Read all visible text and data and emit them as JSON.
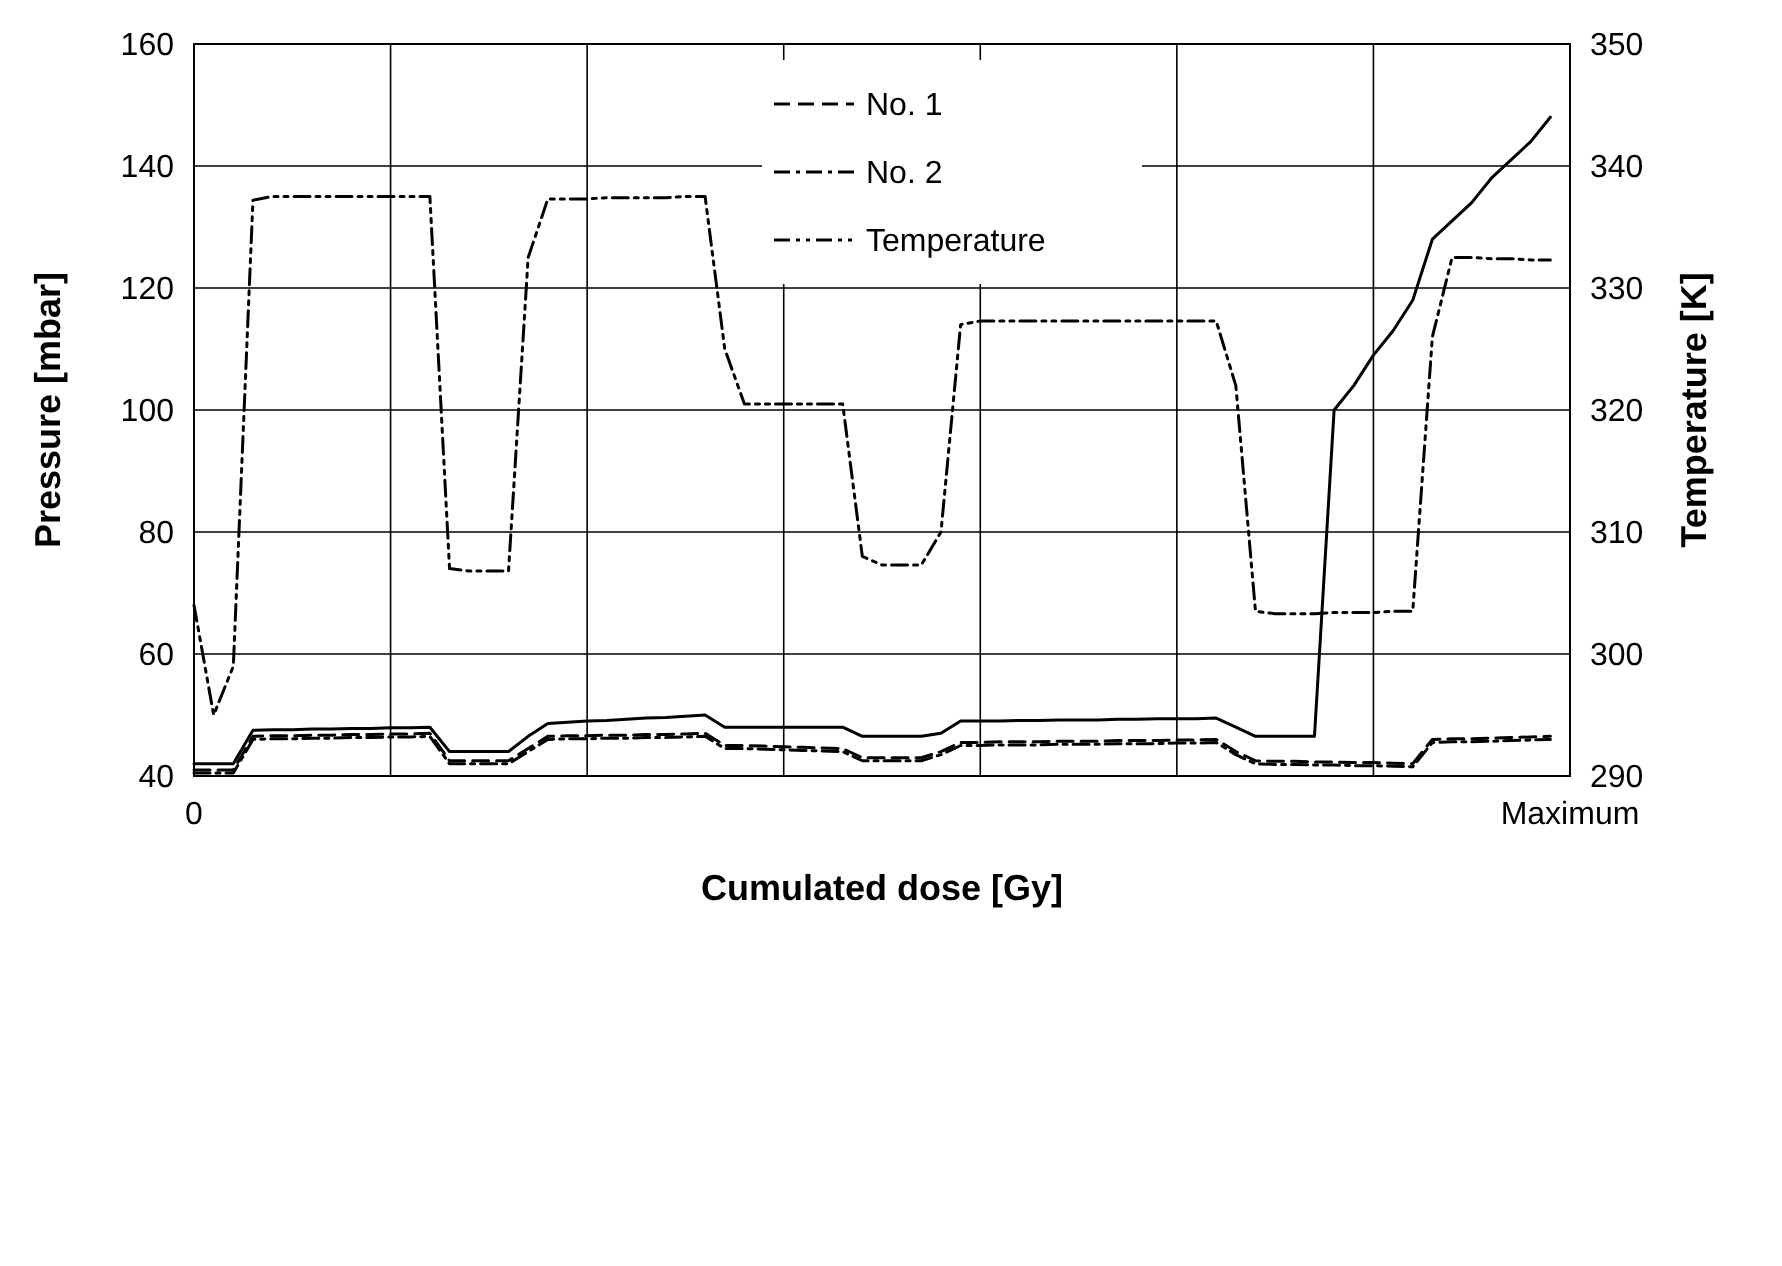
{
  "chart_data": {
    "type": "line",
    "xlabel": "Cumulated dose [Gy]",
    "ylabel": "Pressure [mbar]",
    "y2label": "Temperature [K]",
    "categories": [
      "0",
      null,
      null,
      null,
      null,
      null,
      null,
      null,
      null,
      null,
      null,
      null,
      null,
      null,
      null,
      null,
      null,
      null,
      null,
      null,
      null,
      null,
      null,
      null,
      null,
      null,
      null,
      null,
      null,
      null,
      null,
      null,
      null,
      null,
      null,
      null,
      null,
      null,
      null,
      null,
      null,
      null,
      null,
      null,
      null,
      null,
      null,
      null,
      null,
      null,
      null,
      null,
      null,
      null,
      null,
      null,
      null,
      null,
      null,
      null,
      null,
      null,
      null,
      null,
      null,
      null,
      null,
      null,
      null,
      null,
      "Maximum"
    ],
    "ylim": [
      40,
      160
    ],
    "yticks": [
      40,
      60,
      80,
      100,
      120,
      140,
      160
    ],
    "y2lim": [
      290,
      350
    ],
    "y2ticks": [
      290,
      300,
      310,
      320,
      330,
      340,
      350
    ],
    "grid": true,
    "legend": "top",
    "marker": "none",
    "series": [
      {
        "color": "#000000",
        "line_style": "solid",
        "values": [
          42,
          42,
          42,
          47.5,
          47.6,
          47.6,
          47.7,
          47.7,
          47.8,
          47.8,
          47.9,
          47.9,
          48,
          44,
          44,
          44,
          44,
          46.5,
          48.6,
          48.8,
          49,
          49.1,
          49.3,
          49.5,
          49.6,
          49.8,
          50,
          48,
          48,
          48,
          48,
          48,
          48,
          48,
          46.5,
          46.5,
          46.5,
          46.5,
          47,
          49,
          49,
          49,
          49.1,
          49.1,
          49.2,
          49.2,
          49.2,
          49.3,
          49.3,
          49.4,
          49.4,
          49.4,
          49.5,
          48,
          46.5,
          46.5,
          46.5,
          46.5,
          100,
          104,
          109,
          113,
          118,
          128,
          131,
          134,
          138,
          141,
          144,
          148,
          null
        ]
      },
      {
        "name": "No. 1",
        "color": "#000000",
        "line_style": "dashed",
        "values": [
          41,
          41,
          41,
          46.5,
          46.6,
          46.6,
          46.7,
          46.7,
          46.8,
          46.8,
          46.9,
          46.9,
          47,
          42.5,
          42.5,
          42.5,
          42.5,
          44.5,
          46.5,
          46.6,
          46.6,
          46.7,
          46.7,
          46.8,
          46.8,
          46.9,
          47,
          45,
          45,
          44.9,
          44.8,
          44.7,
          44.6,
          44.5,
          43,
          43,
          43,
          43,
          44,
          45.5,
          45.5,
          45.6,
          45.6,
          45.6,
          45.7,
          45.7,
          45.7,
          45.8,
          45.8,
          45.8,
          45.9,
          45.9,
          46,
          44,
          42.5,
          42.4,
          42.4,
          42.3,
          42.3,
          42.2,
          42.2,
          42.1,
          42,
          46,
          46.1,
          46.1,
          46.2,
          46.3,
          46.4,
          46.5,
          null
        ]
      },
      {
        "name": "No. 2",
        "color": "#000000",
        "line_style": "dashdot",
        "values": [
          40.5,
          40.5,
          40.5,
          46,
          46.1,
          46.1,
          46.2,
          46.2,
          46.3,
          46.3,
          46.4,
          46.4,
          46.5,
          42,
          42,
          42,
          42,
          44,
          46,
          46.1,
          46.1,
          46.2,
          46.2,
          46.3,
          46.3,
          46.4,
          46.5,
          44.5,
          44.5,
          44.4,
          44.3,
          44.2,
          44.1,
          44,
          42.5,
          42.5,
          42.5,
          42.5,
          43.5,
          45,
          45,
          45.1,
          45.1,
          45.1,
          45.2,
          45.2,
          45.2,
          45.3,
          45.3,
          45.3,
          45.4,
          45.4,
          45.5,
          43.5,
          42,
          41.9,
          41.9,
          41.8,
          41.8,
          41.7,
          41.7,
          41.6,
          41.5,
          45.5,
          45.6,
          45.6,
          45.7,
          45.8,
          45.9,
          46,
          null
        ]
      },
      {
        "name": "Temperature",
        "color": "#000000",
        "line_style": "dashdotdot",
        "axis": "y2",
        "values": [
          304,
          295,
          299,
          337.2,
          337.5,
          337.5,
          337.5,
          337.5,
          337.5,
          337.5,
          337.5,
          337.5,
          337.5,
          307,
          306.8,
          306.8,
          306.8,
          332.5,
          337.3,
          337.3,
          337.3,
          337.4,
          337.4,
          337.4,
          337.4,
          337.5,
          337.5,
          325,
          320.5,
          320.5,
          320.5,
          320.5,
          320.5,
          320.5,
          308,
          307.3,
          307.3,
          307.3,
          310,
          327,
          327.3,
          327.3,
          327.3,
          327.3,
          327.3,
          327.3,
          327.3,
          327.3,
          327.3,
          327.3,
          327.3,
          327.3,
          327.3,
          322,
          303.5,
          303.3,
          303.3,
          303.3,
          303.4,
          303.4,
          303.4,
          303.5,
          303.5,
          326,
          332.5,
          332.5,
          332.4,
          332.4,
          332.3,
          332.3,
          null
        ]
      }
    ]
  }
}
